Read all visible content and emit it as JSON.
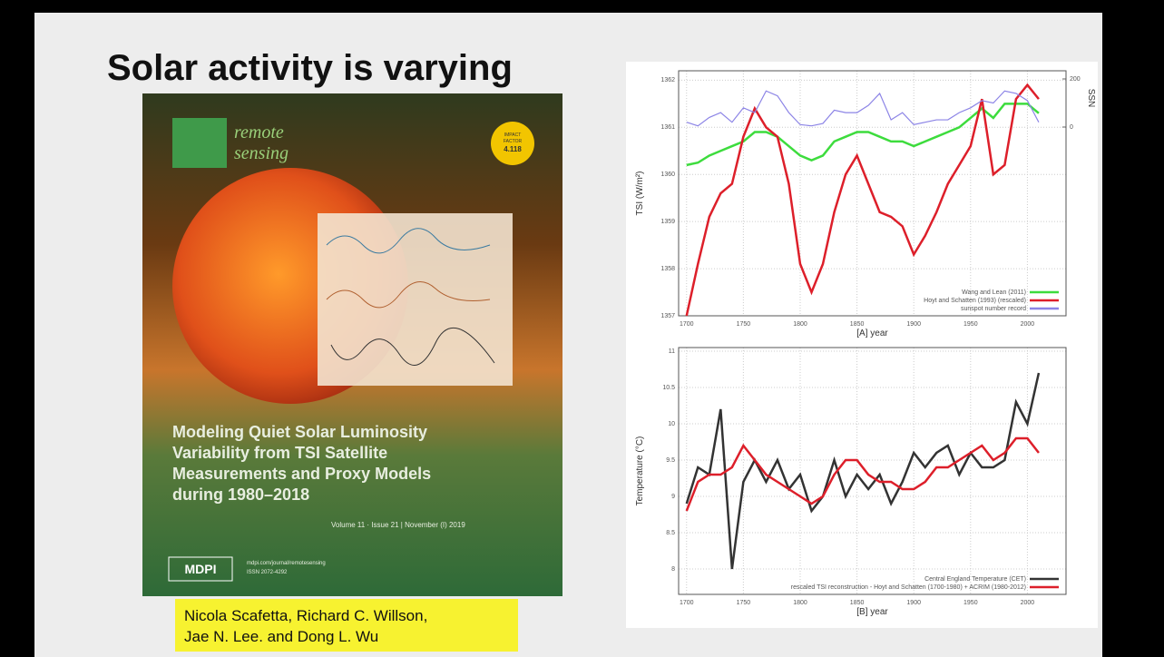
{
  "slide": {
    "title": "Solar activity is varying",
    "cover": {
      "journal": [
        "remote",
        "sensing"
      ],
      "impact": [
        "IMPACT",
        "FACTOR",
        "4.118"
      ],
      "title_lines": [
        "Modeling Quiet Solar Luminosity",
        "Variability from TSI Satellite",
        "Measurements and Proxy Models",
        "during 1980–2018"
      ],
      "issue": "Volume 11 · Issue 21 | November (I) 2019",
      "publisher": "MDPI",
      "publisher_lines": [
        "mdpi.com/journal/remotesensing",
        "ISSN 2072-4292"
      ]
    },
    "authors": [
      "Nicola Scafetta, Richard C. Willson,",
      "Jae N. Lee. and Dong L. Wu"
    ]
  },
  "chart_data": [
    {
      "type": "line",
      "x_label": "[A]   year",
      "y_label": "TSI (W/m²)",
      "y2_label": "SSN",
      "xlim": [
        1693,
        2034
      ],
      "xticks": [
        1700,
        1750,
        1800,
        1850,
        1900,
        1950,
        2000
      ],
      "ylim": [
        1357,
        1362.2
      ],
      "yticks": [
        1357,
        1358,
        1359,
        1360,
        1361,
        1362
      ],
      "y2lim": [
        -785,
        234
      ],
      "y2ticks": [
        0,
        200
      ],
      "grid": true,
      "legend": "lower right",
      "x": [
        1700,
        1710,
        1720,
        1730,
        1740,
        1750,
        1760,
        1770,
        1780,
        1790,
        1800,
        1810,
        1820,
        1830,
        1840,
        1850,
        1860,
        1870,
        1880,
        1890,
        1900,
        1910,
        1920,
        1930,
        1940,
        1950,
        1960,
        1970,
        1980,
        1990,
        2000,
        2010
      ],
      "series": [
        {
          "name": "Wang and Lean (2011)",
          "color": "#3ddc3d",
          "values": [
            1360.2,
            1360.25,
            1360.4,
            1360.5,
            1360.6,
            1360.7,
            1360.9,
            1360.9,
            1360.8,
            1360.6,
            1360.4,
            1360.3,
            1360.4,
            1360.7,
            1360.8,
            1360.9,
            1360.9,
            1360.8,
            1360.7,
            1360.7,
            1360.6,
            1360.7,
            1360.8,
            1360.9,
            1361.0,
            1361.2,
            1361.4,
            1361.2,
            1361.5,
            1361.5,
            1361.5,
            1361.3
          ]
        },
        {
          "name": "Hoyt and Schatten (1993) (rescaled)",
          "color": "#dd1f2a",
          "values": [
            1357.0,
            1358.1,
            1359.1,
            1359.6,
            1359.8,
            1360.8,
            1361.4,
            1361.0,
            1360.8,
            1359.8,
            1358.1,
            1357.5,
            1358.1,
            1359.2,
            1360.0,
            1360.4,
            1359.8,
            1359.2,
            1359.1,
            1358.9,
            1358.3,
            1358.7,
            1359.2,
            1359.8,
            1360.2,
            1360.6,
            1361.6,
            1360.0,
            1360.2,
            1361.6,
            1361.9,
            1361.6
          ]
        },
        {
          "name": "sunspot number record",
          "color": "#8c84e6",
          "axis": "y2",
          "values": [
            20,
            5,
            40,
            60,
            20,
            80,
            60,
            150,
            130,
            60,
            10,
            5,
            15,
            70,
            60,
            60,
            90,
            140,
            30,
            60,
            10,
            20,
            30,
            30,
            60,
            80,
            110,
            100,
            150,
            140,
            110,
            20
          ]
        }
      ]
    },
    {
      "type": "line",
      "x_label": "[B]   year",
      "y_label": "Temperature (°C)",
      "xlim": [
        1693,
        2034
      ],
      "xticks": [
        1700,
        1750,
        1800,
        1850,
        1900,
        1950,
        2000
      ],
      "ylim": [
        7.65,
        11.05
      ],
      "yticks": [
        8,
        8.5,
        9,
        9.5,
        10,
        10.5,
        11
      ],
      "grid": true,
      "legend": "lower right",
      "x": [
        1700,
        1710,
        1720,
        1730,
        1740,
        1750,
        1760,
        1770,
        1780,
        1790,
        1800,
        1810,
        1820,
        1830,
        1840,
        1850,
        1860,
        1870,
        1880,
        1890,
        1900,
        1910,
        1920,
        1930,
        1940,
        1950,
        1960,
        1970,
        1980,
        1990,
        2000,
        2010
      ],
      "series": [
        {
          "name": "Central England Temperature (CET)",
          "color": "#333333",
          "values": [
            8.9,
            9.4,
            9.3,
            10.2,
            8.0,
            9.2,
            9.5,
            9.2,
            9.5,
            9.1,
            9.3,
            8.8,
            9.0,
            9.5,
            9.0,
            9.3,
            9.1,
            9.3,
            8.9,
            9.2,
            9.6,
            9.4,
            9.6,
            9.7,
            9.3,
            9.6,
            9.4,
            9.4,
            9.5,
            10.3,
            10.0,
            10.7
          ]
        },
        {
          "name": "rescaled TSI reconstruction - Hoyt and Schatten (1700-1980) + ACRIM (1980-2012)",
          "color": "#dd1f2a",
          "values": [
            8.8,
            9.2,
            9.3,
            9.3,
            9.4,
            9.7,
            9.5,
            9.3,
            9.2,
            9.1,
            9.0,
            8.9,
            9.0,
            9.3,
            9.5,
            9.5,
            9.3,
            9.2,
            9.2,
            9.1,
            9.1,
            9.2,
            9.4,
            9.4,
            9.5,
            9.6,
            9.7,
            9.5,
            9.6,
            9.8,
            9.8,
            9.6
          ]
        }
      ]
    }
  ]
}
